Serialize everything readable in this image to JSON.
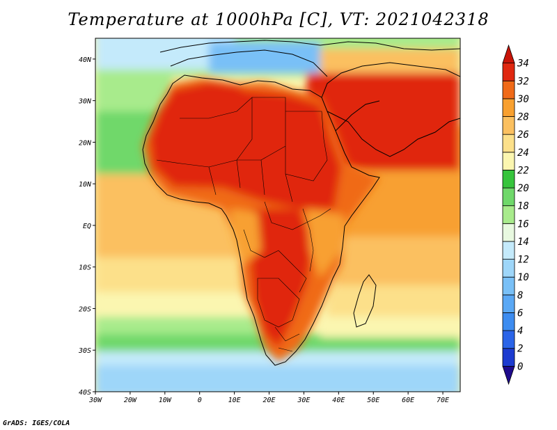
{
  "title": "Temperature at 1000hPa [C], VT: 2021042318",
  "credit": "GrADS: IGES/COLA",
  "map": {
    "lon_range": [
      -30,
      75
    ],
    "lat_range": [
      -40,
      45
    ],
    "lon_ticks": [
      {
        "value": -30,
        "label": "30W"
      },
      {
        "value": -20,
        "label": "20W"
      },
      {
        "value": -10,
        "label": "10W"
      },
      {
        "value": 0,
        "label": "0"
      },
      {
        "value": 10,
        "label": "10E"
      },
      {
        "value": 20,
        "label": "20E"
      },
      {
        "value": 30,
        "label": "30E"
      },
      {
        "value": 40,
        "label": "40E"
      },
      {
        "value": 50,
        "label": "50E"
      },
      {
        "value": 60,
        "label": "60E"
      },
      {
        "value": 70,
        "label": "70E"
      }
    ],
    "lat_ticks": [
      {
        "value": 40,
        "label": "40N"
      },
      {
        "value": 30,
        "label": "30N"
      },
      {
        "value": 20,
        "label": "20N"
      },
      {
        "value": 10,
        "label": "10N"
      },
      {
        "value": 0,
        "label": "EQ"
      },
      {
        "value": -10,
        "label": "10S"
      },
      {
        "value": -20,
        "label": "20S"
      },
      {
        "value": -30,
        "label": "30S"
      },
      {
        "value": -40,
        "label": "40S"
      }
    ]
  },
  "colorbar": {
    "levels": [
      "0",
      "2",
      "4",
      "6",
      "8",
      "10",
      "12",
      "14",
      "16",
      "18",
      "20",
      "22",
      "24",
      "26",
      "28",
      "30",
      "32",
      "34"
    ],
    "colors": [
      "#1e0a8c",
      "#1c3bd0",
      "#2a64e8",
      "#3d8cf0",
      "#5aa8f5",
      "#79c0f7",
      "#9ed6f9",
      "#c4eafb",
      "#e8f9e0",
      "#a8eb8c",
      "#6fd86a",
      "#36c43c",
      "#fbf6b0",
      "#fce08a",
      "#fbc060",
      "#f8a030",
      "#f06a18",
      "#e02810",
      "#c81408"
    ]
  }
}
